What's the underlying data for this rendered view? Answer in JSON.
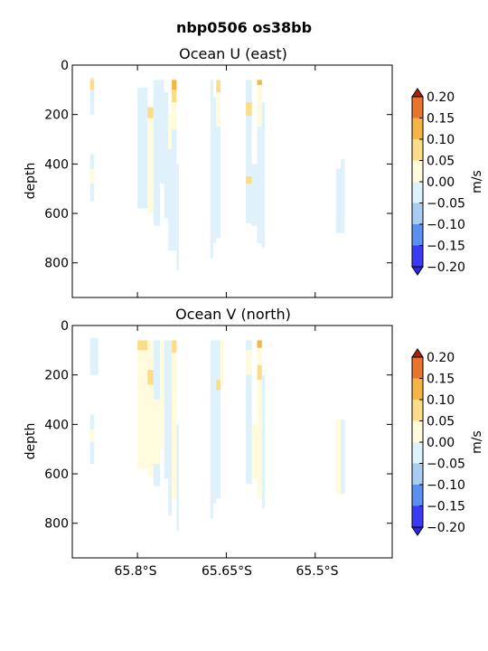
{
  "figure": {
    "title": "nbp0506 os38bb"
  },
  "x_tick_labels": [
    "65.8°S",
    "65.65°S",
    "65.5°S"
  ],
  "colorbar": {
    "label": "m/s",
    "tick_labels": [
      "0.20",
      "0.15",
      "0.10",
      "0.05",
      "0.00",
      "−0.05",
      "−0.10",
      "−0.15",
      "−0.20"
    ],
    "levels": [
      -0.2,
      -0.15,
      -0.1,
      -0.05,
      0.0,
      0.05,
      0.1,
      0.15,
      0.2
    ],
    "colors": [
      "#3b3bf5",
      "#5b8ff0",
      "#a8ccf2",
      "#dff1fb",
      "#fffbdc",
      "#fbdc88",
      "#f4b545",
      "#e8742d"
    ],
    "under_color": "#2828e0",
    "over_color": "#b81c0a"
  },
  "chart_data": [
    {
      "type": "heatmap",
      "title": "Ocean U (east)",
      "ylabel": "depth",
      "xlabel": "",
      "y_tick_labels": [
        "0",
        "200",
        "400",
        "600",
        "800"
      ],
      "ylim": [
        940,
        0
      ],
      "xlim": [
        -65.91,
        -65.37
      ],
      "y_inverted": true,
      "cells": [
        {
          "x": [
            -65.88,
            -65.873
          ],
          "y": [
            50,
            200
          ],
          "v": 0.0
        },
        {
          "x": [
            -65.88,
            -65.873
          ],
          "y": [
            60,
            100
          ],
          "v": 0.06
        },
        {
          "x": [
            -65.88,
            -65.873
          ],
          "y": [
            360,
            550
          ],
          "v": -0.02
        },
        {
          "x": [
            -65.88,
            -65.873
          ],
          "y": [
            420,
            480
          ],
          "v": 0.02
        },
        {
          "x": [
            -65.8,
            -65.783
          ],
          "y": [
            90,
            580
          ],
          "v": -0.03
        },
        {
          "x": [
            -65.783,
            -65.773
          ],
          "y": [
            170,
            215
          ],
          "v": 0.08
        },
        {
          "x": [
            -65.783,
            -65.773
          ],
          "y": [
            215,
            600
          ],
          "v": 0.01
        },
        {
          "x": [
            -65.773,
            -65.762
          ],
          "y": [
            60,
            650
          ],
          "v": -0.03
        },
        {
          "x": [
            -65.762,
            -65.755
          ],
          "y": [
            60,
            480
          ],
          "v": -0.02
        },
        {
          "x": [
            -65.755,
            -65.748
          ],
          "y": [
            110,
            620
          ],
          "v": -0.03
        },
        {
          "x": [
            -65.748,
            -65.742
          ],
          "y": [
            200,
            340
          ],
          "v": 0.02
        },
        {
          "x": [
            -65.748,
            -65.742
          ],
          "y": [
            340,
            750
          ],
          "v": -0.03
        },
        {
          "x": [
            -65.742,
            -65.734
          ],
          "y": [
            55,
            260
          ],
          "v": 0.03
        },
        {
          "x": [
            -65.742,
            -65.734
          ],
          "y": [
            60,
            100
          ],
          "v": 0.12
        },
        {
          "x": [
            -65.742,
            -65.734
          ],
          "y": [
            100,
            150
          ],
          "v": 0.06
        },
        {
          "x": [
            -65.742,
            -65.734
          ],
          "y": [
            260,
            750
          ],
          "v": -0.02
        },
        {
          "x": [
            -65.734,
            -65.73
          ],
          "y": [
            400,
            830
          ],
          "v": -0.02
        },
        {
          "x": [
            -65.677,
            -65.672
          ],
          "y": [
            60,
            780
          ],
          "v": -0.03
        },
        {
          "x": [
            -65.672,
            -65.667
          ],
          "y": [
            130,
            720
          ],
          "v": -0.02
        },
        {
          "x": [
            -65.667,
            -65.66
          ],
          "y": [
            60,
            250
          ],
          "v": 0.02
        },
        {
          "x": [
            -65.667,
            -65.66
          ],
          "y": [
            60,
            110
          ],
          "v": 0.07
        },
        {
          "x": [
            -65.667,
            -65.66
          ],
          "y": [
            250,
            700
          ],
          "v": -0.02
        },
        {
          "x": [
            -65.617,
            -65.607
          ],
          "y": [
            60,
            640
          ],
          "v": -0.03
        },
        {
          "x": [
            -65.617,
            -65.607
          ],
          "y": [
            150,
            205
          ],
          "v": 0.07
        },
        {
          "x": [
            -65.617,
            -65.607
          ],
          "y": [
            450,
            480
          ],
          "v": 0.1
        },
        {
          "x": [
            -65.607,
            -65.598
          ],
          "y": [
            400,
            650
          ],
          "v": -0.03
        },
        {
          "x": [
            -65.598,
            -65.59
          ],
          "y": [
            60,
            720
          ],
          "v": -0.02
        },
        {
          "x": [
            -65.598,
            -65.59
          ],
          "y": [
            60,
            250
          ],
          "v": 0.02
        },
        {
          "x": [
            -65.598,
            -65.59
          ],
          "y": [
            60,
            80
          ],
          "v": 0.12
        },
        {
          "x": [
            -65.59,
            -65.585
          ],
          "y": [
            150,
            740
          ],
          "v": -0.03
        },
        {
          "x": [
            -65.465,
            -65.457
          ],
          "y": [
            420,
            680
          ],
          "v": -0.03
        },
        {
          "x": [
            -65.457,
            -65.45
          ],
          "y": [
            380,
            680
          ],
          "v": -0.03
        }
      ]
    },
    {
      "type": "heatmap",
      "title": "Ocean V (north)",
      "ylabel": "depth",
      "xlabel": "",
      "y_tick_labels": [
        "0",
        "200",
        "400",
        "600",
        "800"
      ],
      "ylim": [
        940,
        0
      ],
      "xlim": [
        -65.91,
        -65.37
      ],
      "y_inverted": true,
      "cells": [
        {
          "x": [
            -65.88,
            -65.873
          ],
          "y": [
            50,
            200
          ],
          "v": -0.02
        },
        {
          "x": [
            -65.88,
            -65.873
          ],
          "y": [
            360,
            560
          ],
          "v": -0.02
        },
        {
          "x": [
            -65.88,
            -65.873
          ],
          "y": [
            420,
            470
          ],
          "v": 0.02
        },
        {
          "x": [
            -65.873,
            -65.866
          ],
          "y": [
            50,
            200
          ],
          "v": -0.03
        },
        {
          "x": [
            -65.8,
            -65.783
          ],
          "y": [
            60,
            580
          ],
          "v": 0.02
        },
        {
          "x": [
            -65.8,
            -65.783
          ],
          "y": [
            60,
            100
          ],
          "v": 0.06
        },
        {
          "x": [
            -65.783,
            -65.773
          ],
          "y": [
            60,
            610
          ],
          "v": 0.02
        },
        {
          "x": [
            -65.783,
            -65.773
          ],
          "y": [
            180,
            240
          ],
          "v": 0.06
        },
        {
          "x": [
            -65.773,
            -65.762
          ],
          "y": [
            60,
            650
          ],
          "v": -0.02
        },
        {
          "x": [
            -65.773,
            -65.762
          ],
          "y": [
            300,
            560
          ],
          "v": 0.02
        },
        {
          "x": [
            -65.762,
            -65.755
          ],
          "y": [
            60,
            500
          ],
          "v": 0.02
        },
        {
          "x": [
            -65.755,
            -65.748
          ],
          "y": [
            60,
            620
          ],
          "v": -0.02
        },
        {
          "x": [
            -65.748,
            -65.742
          ],
          "y": [
            60,
            770
          ],
          "v": -0.02
        },
        {
          "x": [
            -65.742,
            -65.734
          ],
          "y": [
            60,
            700
          ],
          "v": 0.02
        },
        {
          "x": [
            -65.742,
            -65.734
          ],
          "y": [
            60,
            110
          ],
          "v": 0.07
        },
        {
          "x": [
            -65.734,
            -65.73
          ],
          "y": [
            400,
            830
          ],
          "v": -0.02
        },
        {
          "x": [
            -65.677,
            -65.672
          ],
          "y": [
            60,
            780
          ],
          "v": -0.02
        },
        {
          "x": [
            -65.672,
            -65.667
          ],
          "y": [
            60,
            720
          ],
          "v": -0.02
        },
        {
          "x": [
            -65.667,
            -65.66
          ],
          "y": [
            60,
            700
          ],
          "v": -0.02
        },
        {
          "x": [
            -65.667,
            -65.66
          ],
          "y": [
            220,
            260
          ],
          "v": 0.07
        },
        {
          "x": [
            -65.66,
            -65.655
          ],
          "y": [
            60,
            250
          ],
          "v": 0.02
        },
        {
          "x": [
            -65.617,
            -65.607
          ],
          "y": [
            60,
            640
          ],
          "v": -0.02
        },
        {
          "x": [
            -65.617,
            -65.607
          ],
          "y": [
            100,
            200
          ],
          "v": 0.02
        },
        {
          "x": [
            -65.607,
            -65.598
          ],
          "y": [
            400,
            620
          ],
          "v": 0.02
        },
        {
          "x": [
            -65.598,
            -65.59
          ],
          "y": [
            60,
            700
          ],
          "v": 0.02
        },
        {
          "x": [
            -65.598,
            -65.59
          ],
          "y": [
            60,
            90
          ],
          "v": 0.12
        },
        {
          "x": [
            -65.598,
            -65.59
          ],
          "y": [
            160,
            220
          ],
          "v": 0.08
        },
        {
          "x": [
            -65.59,
            -65.585
          ],
          "y": [
            200,
            740
          ],
          "v": -0.02
        },
        {
          "x": [
            -65.465,
            -65.457
          ],
          "y": [
            380,
            680
          ],
          "v": 0.02
        },
        {
          "x": [
            -65.457,
            -65.45
          ],
          "y": [
            380,
            680
          ],
          "v": -0.02
        }
      ]
    }
  ]
}
